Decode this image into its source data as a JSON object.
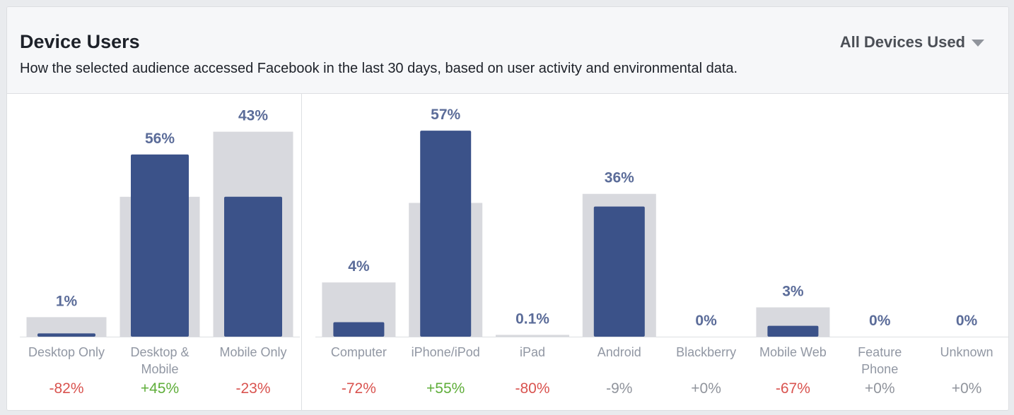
{
  "header": {
    "title": "Device Users",
    "subtitle": "How the selected audience accessed Facebook in the last 30 days, based on user activity and environmental data.",
    "dropdown_label": "All Devices Used"
  },
  "colors": {
    "selected_bar": "#3b5289",
    "baseline_bar": "#d8d9de",
    "negative": "#d9534f",
    "positive": "#5fae3a",
    "neutral": "#90949c"
  },
  "chart_data": [
    {
      "type": "bar",
      "categories": [
        [
          "Desktop Only"
        ],
        [
          "Desktop &",
          "Mobile"
        ],
        [
          "Mobile Only"
        ]
      ],
      "value_labels": [
        "1%",
        "56%",
        "43%"
      ],
      "series": [
        {
          "values": [
            1,
            56,
            43
          ]
        },
        {
          "values": [
            6,
            43,
            63
          ]
        }
      ],
      "changes": [
        "-82%",
        "+45%",
        "-23%"
      ],
      "ylim": [
        0,
        64
      ]
    },
    {
      "type": "bar",
      "categories": [
        [
          "Computer"
        ],
        [
          "iPhone/iPod"
        ],
        [
          "iPad"
        ],
        [
          "Android"
        ],
        [
          "Blackberry"
        ],
        [
          "Mobile Web"
        ],
        [
          "Feature",
          "Phone"
        ],
        [
          "Unknown"
        ]
      ],
      "value_labels": [
        "4%",
        "57%",
        "0.1%",
        "36%",
        "0%",
        "3%",
        "0%",
        "0%"
      ],
      "series": [
        {
          "values": [
            4,
            57,
            0.1,
            36,
            0,
            3,
            0,
            0
          ]
        },
        {
          "values": [
            15,
            37,
            0.5,
            39.5,
            0,
            8.1,
            0,
            0
          ]
        }
      ],
      "changes": [
        "-72%",
        "+55%",
        "-80%",
        "-9%",
        "+0%",
        "-67%",
        "+0%",
        "+0%"
      ],
      "ylim": [
        0,
        57.6
      ]
    }
  ]
}
